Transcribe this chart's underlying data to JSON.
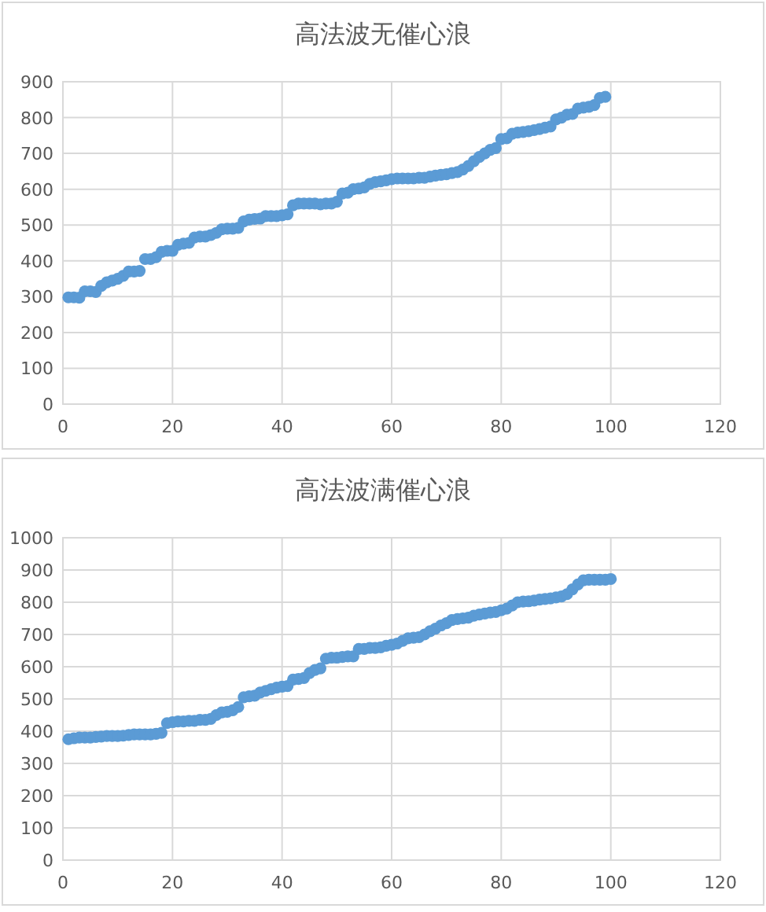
{
  "chart_data": [
    {
      "type": "scatter",
      "title": "高法波无催心浪",
      "marker": "circle",
      "grid": true,
      "xlim": [
        0,
        120
      ],
      "xticks": [
        0,
        20,
        40,
        60,
        80,
        100,
        120
      ],
      "ylim": [
        0,
        900
      ],
      "yticks": [
        0,
        100,
        200,
        300,
        400,
        500,
        600,
        700,
        800,
        900
      ],
      "x": [
        1,
        2,
        3,
        4,
        5,
        6,
        7,
        8,
        9,
        10,
        11,
        12,
        13,
        14,
        15,
        16,
        17,
        18,
        19,
        20,
        21,
        22,
        23,
        24,
        25,
        26,
        27,
        28,
        29,
        30,
        31,
        32,
        33,
        34,
        35,
        36,
        37,
        38,
        39,
        40,
        41,
        42,
        43,
        44,
        45,
        46,
        47,
        48,
        49,
        50,
        51,
        52,
        53,
        54,
        55,
        56,
        57,
        58,
        59,
        60,
        61,
        62,
        63,
        64,
        65,
        66,
        67,
        68,
        69,
        70,
        71,
        72,
        73,
        74,
        75,
        76,
        77,
        78,
        79,
        80,
        81,
        82,
        83,
        84,
        85,
        86,
        87,
        88,
        89,
        90,
        91,
        92,
        93,
        94,
        95,
        96,
        97,
        98,
        99
      ],
      "series": [
        {
          "color": "#5b9bd5",
          "values": [
            298,
            298,
            297,
            315,
            315,
            313,
            330,
            340,
            345,
            350,
            358,
            370,
            370,
            372,
            405,
            405,
            410,
            425,
            428,
            428,
            445,
            448,
            450,
            465,
            468,
            468,
            472,
            478,
            488,
            490,
            490,
            492,
            510,
            515,
            517,
            518,
            525,
            525,
            525,
            527,
            530,
            555,
            560,
            560,
            560,
            560,
            558,
            560,
            560,
            565,
            588,
            590,
            600,
            602,
            605,
            615,
            620,
            622,
            625,
            628,
            630,
            630,
            630,
            630,
            632,
            632,
            635,
            638,
            640,
            642,
            645,
            648,
            655,
            665,
            678,
            690,
            700,
            710,
            715,
            740,
            742,
            755,
            758,
            760,
            762,
            765,
            768,
            772,
            775,
            795,
            800,
            808,
            810,
            825,
            828,
            830,
            835,
            855,
            858
          ]
        }
      ]
    },
    {
      "type": "scatter",
      "title": "高法波满催心浪",
      "marker": "circle",
      "grid": true,
      "xlim": [
        0,
        120
      ],
      "xticks": [
        0,
        20,
        40,
        60,
        80,
        100,
        120
      ],
      "ylim": [
        0,
        1000
      ],
      "yticks": [
        0,
        100,
        200,
        300,
        400,
        500,
        600,
        700,
        800,
        900,
        1000
      ],
      "x": [
        1,
        2,
        3,
        4,
        5,
        6,
        7,
        8,
        9,
        10,
        11,
        12,
        13,
        14,
        15,
        16,
        17,
        18,
        19,
        20,
        21,
        22,
        23,
        24,
        25,
        26,
        27,
        28,
        29,
        30,
        31,
        32,
        33,
        34,
        35,
        36,
        37,
        38,
        39,
        40,
        41,
        42,
        43,
        44,
        45,
        46,
        47,
        48,
        49,
        50,
        51,
        52,
        53,
        54,
        55,
        56,
        57,
        58,
        59,
        60,
        61,
        62,
        63,
        64,
        65,
        66,
        67,
        68,
        69,
        70,
        71,
        72,
        73,
        74,
        75,
        76,
        77,
        78,
        79,
        80,
        81,
        82,
        83,
        84,
        85,
        86,
        87,
        88,
        89,
        90,
        91,
        92,
        93,
        94,
        95,
        96,
        97,
        98,
        99,
        100
      ],
      "series": [
        {
          "color": "#5b9bd5",
          "values": [
            375,
            378,
            380,
            380,
            380,
            382,
            383,
            385,
            385,
            385,
            386,
            388,
            390,
            390,
            390,
            390,
            392,
            395,
            425,
            428,
            430,
            430,
            432,
            432,
            435,
            435,
            438,
            450,
            458,
            460,
            465,
            475,
            505,
            508,
            510,
            520,
            525,
            530,
            535,
            538,
            540,
            560,
            562,
            565,
            580,
            590,
            595,
            625,
            628,
            628,
            630,
            632,
            632,
            655,
            655,
            658,
            658,
            660,
            665,
            668,
            672,
            680,
            688,
            690,
            692,
            700,
            710,
            718,
            728,
            735,
            745,
            748,
            750,
            752,
            758,
            762,
            765,
            768,
            770,
            775,
            780,
            790,
            800,
            802,
            803,
            805,
            808,
            810,
            812,
            815,
            818,
            825,
            840,
            855,
            868,
            870,
            870,
            870,
            870,
            872
          ]
        }
      ]
    }
  ]
}
